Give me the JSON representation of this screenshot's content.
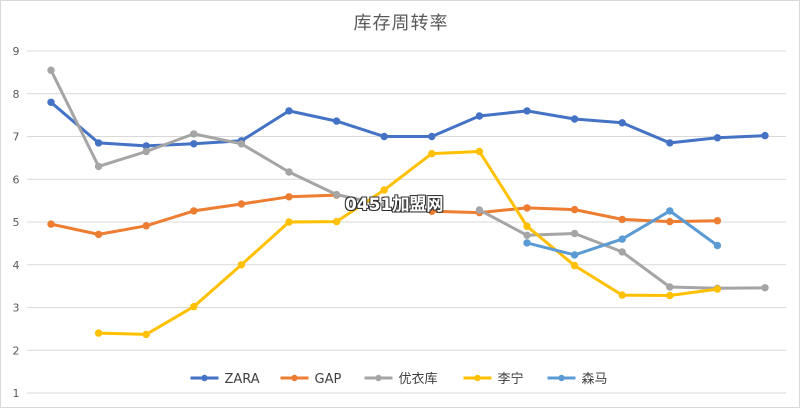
{
  "chart_data": {
    "type": "line",
    "title": "库存周转率",
    "xlabel": "",
    "ylabel": "",
    "ylim": [
      1,
      9
    ],
    "yticks": [
      1,
      2,
      3,
      4,
      5,
      6,
      7,
      8,
      9
    ],
    "grid": true,
    "legend_position": "bottom-center",
    "x": [
      1,
      2,
      3,
      4,
      5,
      6,
      7,
      8,
      9,
      10,
      11,
      12,
      13,
      14,
      15,
      16
    ],
    "series": [
      {
        "name": "ZARA",
        "color": "#4472c4",
        "values": [
          7.8,
          6.85,
          6.78,
          6.83,
          6.9,
          7.6,
          7.36,
          7.0,
          7.0,
          7.48,
          7.6,
          7.41,
          7.32,
          6.85,
          6.97,
          7.02
        ]
      },
      {
        "name": "GAP",
        "color": "#ed7d31",
        "values": [
          4.95,
          4.71,
          4.91,
          5.26,
          5.42,
          5.59,
          5.63,
          null,
          5.25,
          5.22,
          5.33,
          5.29,
          5.06,
          5.01,
          5.03,
          null
        ]
      },
      {
        "name": "优衣库",
        "color": "#a5a5a5",
        "values": [
          8.55,
          6.3,
          6.65,
          7.06,
          6.83,
          6.17,
          5.64,
          5.4,
          null,
          5.28,
          4.69,
          4.73,
          4.3,
          3.48,
          3.45,
          3.46
        ]
      },
      {
        "name": "李宁",
        "color": "#ffc000",
        "values": [
          null,
          2.4,
          2.37,
          3.02,
          4.0,
          5.0,
          5.01,
          5.75,
          6.6,
          6.65,
          4.9,
          3.98,
          3.29,
          3.28,
          3.43,
          null
        ]
      },
      {
        "name": "森马",
        "color": "#5b9bd5",
        "values": [
          null,
          null,
          null,
          null,
          null,
          null,
          null,
          null,
          null,
          null,
          4.51,
          4.23,
          4.6,
          5.26,
          4.45,
          null
        ]
      }
    ]
  },
  "watermark": "0451加盟网"
}
